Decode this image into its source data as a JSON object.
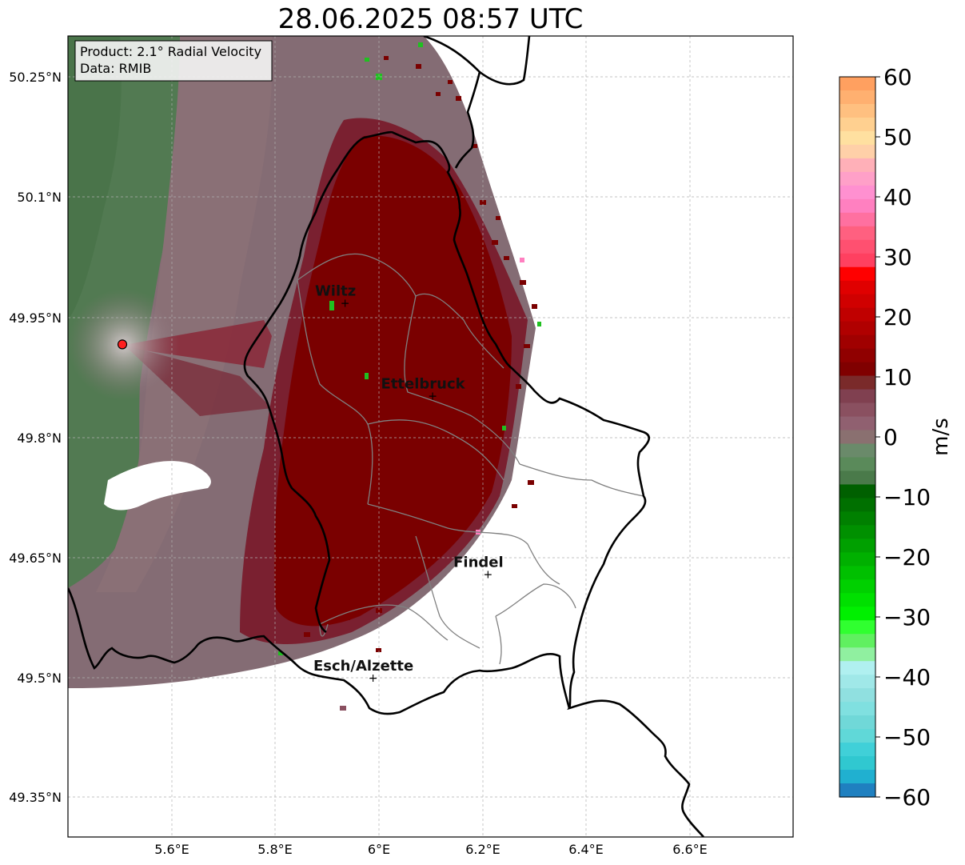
{
  "title": "28.06.2025 08:57 UTC",
  "info_box": {
    "product": "Product: 2.1° Radial Velocity",
    "data": "Data: RMIB"
  },
  "latitude_ticks": [
    "50.25°N",
    "50.1°N",
    "49.95°N",
    "49.8°N",
    "49.65°N",
    "49.5°N",
    "49.35°N"
  ],
  "longitude_ticks": [
    "5.6°E",
    "5.8°E",
    "6°E",
    "6.2°E",
    "6.4°E",
    "6.6°E"
  ],
  "places": [
    {
      "name": "Wiltz",
      "lon": 5.935,
      "lat": 49.966
    },
    {
      "name": "Ettelbruck",
      "lon": 6.104,
      "lat": 49.85
    },
    {
      "name": "Findel",
      "lon": 6.211,
      "lat": 49.627
    },
    {
      "name": "Esch/Alzette",
      "lon": 5.989,
      "lat": 49.498
    }
  ],
  "radar_site": {
    "lon": 5.505,
    "lat": 49.915
  },
  "map_extent": {
    "lon_min": 5.4,
    "lon_max": 6.8,
    "lat_min": 49.3,
    "lat_max": 50.3
  },
  "colorbar": {
    "label": "m/s",
    "min": -60,
    "max": 60,
    "ticks": [
      "60",
      "50",
      "40",
      "30",
      "20",
      "10",
      "0",
      "−10",
      "−20",
      "−30",
      "−40",
      "−50",
      "−60"
    ],
    "colors_top_to_bottom": [
      "#ffa060",
      "#ffb070",
      "#ffc080",
      "#ffd090",
      "#ffe0a0",
      "#ffd0a8",
      "#ffb0b8",
      "#ffa0c8",
      "#ff90d0",
      "#ff80c0",
      "#ff70a0",
      "#ff6080",
      "#ff5070",
      "#ff4060",
      "#ff0000",
      "#e00000",
      "#d00000",
      "#c00000",
      "#b00000",
      "#a00000",
      "#900000",
      "#800000",
      "#7a2a2a",
      "#804050",
      "#8a5060",
      "#906070",
      "#8a7070",
      "#6a8a6a",
      "#5a8a5a",
      "#4a7a4a",
      "#006000",
      "#007000",
      "#008000",
      "#009000",
      "#00a000",
      "#00b000",
      "#00c000",
      "#00d000",
      "#00e000",
      "#00f000",
      "#30ff30",
      "#60f060",
      "#90f0a0",
      "#b0f0f0",
      "#a0e8e8",
      "#90e0e0",
      "#80e0e0",
      "#70d8d8",
      "#60d8d8",
      "#40d0d8",
      "#30c8d0",
      "#20b0d0",
      "#1f80c0"
    ],
    "colors": {
      "positive_high": "#ffa060",
      "positive_mid": "#ff4060",
      "positive_low": "#800000",
      "neutral": "#8a7070",
      "negative_low": "#006000",
      "negative_mid": "#30ff30",
      "negative_high": "#1f80c0"
    }
  },
  "colors": {
    "outbound_core": "#7a0000",
    "outbound_edge": "#803040",
    "neutral_mauve": "#846c74",
    "inbound_green": "#527a52",
    "border": "#000000",
    "canton": "#808080"
  }
}
